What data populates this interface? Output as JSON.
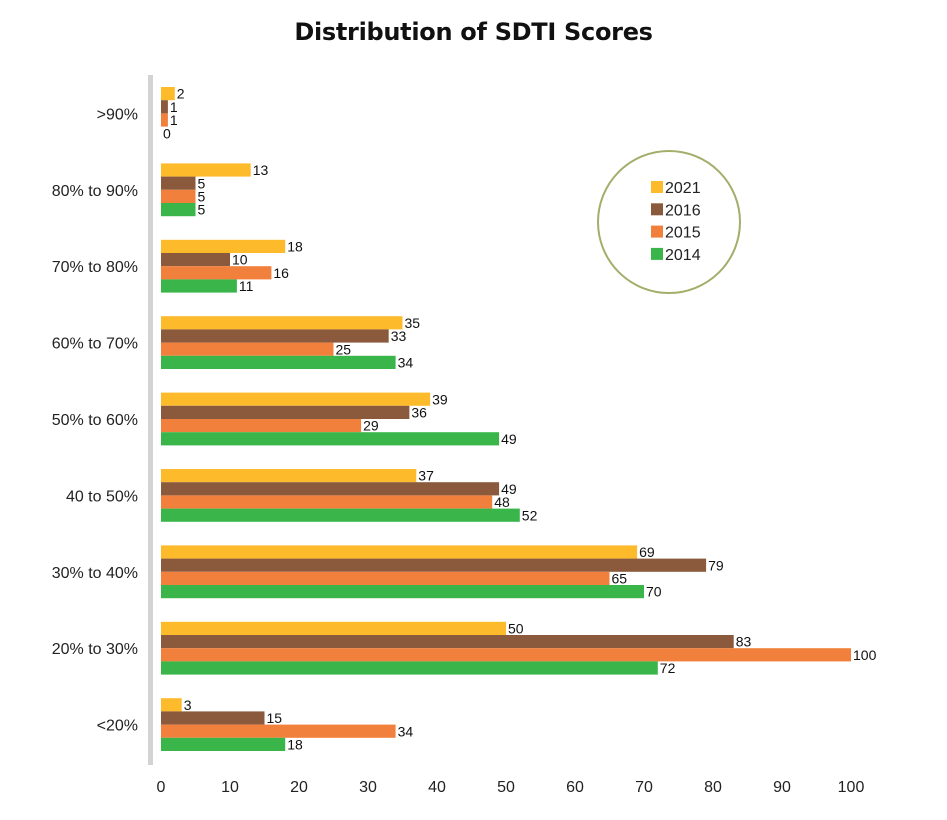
{
  "chart_data": {
    "type": "bar",
    "orientation": "horizontal",
    "title": "Distribution of SDTI Scores",
    "xlabel": "",
    "ylabel": "",
    "xlim": [
      0,
      100
    ],
    "xticks": [
      "0",
      "10",
      "20",
      "30",
      "40",
      "50",
      "60",
      "70",
      "80",
      "90",
      "100"
    ],
    "grid": false,
    "legend_position": "top-right",
    "categories": [
      ">90%",
      "80% to 90%",
      "70% to 80%",
      "60% to 70%",
      "50% to 60%",
      "40 to 50%",
      "30% to 40%",
      "20% to 30%",
      "<20%"
    ],
    "series": [
      {
        "name": "2021",
        "color": "#FDBB2C",
        "values": [
          2,
          13,
          18,
          35,
          39,
          37,
          69,
          50,
          3
        ]
      },
      {
        "name": "2016",
        "color": "#8B5A3C",
        "values": [
          1,
          5,
          10,
          33,
          36,
          49,
          79,
          83,
          15
        ]
      },
      {
        "name": "2015",
        "color": "#F0803C",
        "values": [
          1,
          5,
          16,
          25,
          29,
          48,
          65,
          100,
          34
        ]
      },
      {
        "name": "2014",
        "color": "#3AB54A",
        "values": [
          0,
          5,
          11,
          34,
          49,
          52,
          70,
          72,
          18
        ]
      }
    ]
  },
  "style": {
    "axis_color": "#D3D3D3",
    "legend_border_color": "#A4AD6A"
  }
}
